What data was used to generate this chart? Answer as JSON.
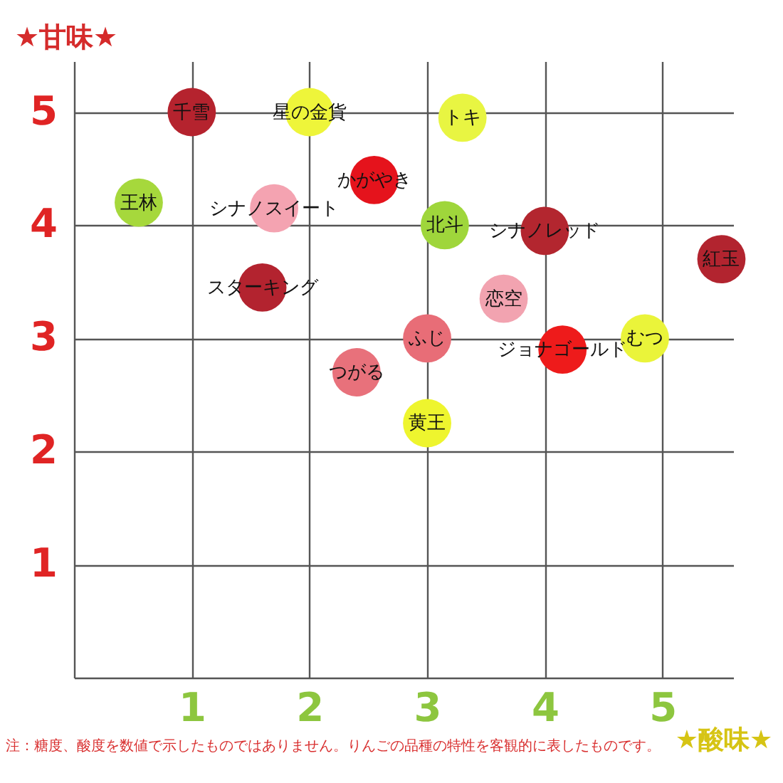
{
  "chart_data": {
    "type": "scatter",
    "xlabel": "★酸味★",
    "ylabel": "★甘味★",
    "xlim": [
      0,
      5.6
    ],
    "ylim": [
      0,
      5.45
    ],
    "xticks": [
      1,
      2,
      3,
      4,
      5
    ],
    "yticks": [
      1,
      2,
      3,
      4,
      5
    ],
    "grid": true,
    "marker": "circle",
    "annotations": [
      "注：糖度、酸度を数値で示したものではありません。りんごの品種の特性を客観的に表したものです。"
    ],
    "series": [
      {
        "name": "千雪",
        "color": "#b5232e",
        "x": [
          1.0
        ],
        "values": [
          5.0
        ]
      },
      {
        "name": "星の金貨",
        "color": "#eef53a",
        "x": [
          2.0
        ],
        "values": [
          5.0
        ]
      },
      {
        "name": "王林",
        "color": "#a6d83c",
        "x": [
          0.55
        ],
        "values": [
          4.2
        ]
      },
      {
        "name": "シナノスイート",
        "color": "#f4a3b1",
        "x": [
          1.7
        ],
        "values": [
          4.15
        ]
      },
      {
        "name": "かがやき",
        "color": "#e5131c",
        "x": [
          2.55
        ],
        "values": [
          4.4
        ]
      },
      {
        "name": "トキ",
        "color": "#e8f542",
        "x": [
          3.3
        ],
        "values": [
          4.95
        ]
      },
      {
        "name": "北斗",
        "color": "#9fd63b",
        "x": [
          3.15
        ],
        "values": [
          4.0
        ]
      },
      {
        "name": "シナノレッド",
        "color": "#b3262f",
        "x": [
          4.0
        ],
        "values": [
          3.95
        ]
      },
      {
        "name": "紅玉",
        "color": "#b2242f",
        "x": [
          5.5
        ],
        "values": [
          3.7
        ]
      },
      {
        "name": "スターキング",
        "color": "#b3232f",
        "x": [
          1.6
        ],
        "values": [
          3.45
        ]
      },
      {
        "name": "恋空",
        "color": "#f2a3b0",
        "x": [
          3.65
        ],
        "values": [
          3.35
        ]
      },
      {
        "name": "ふじ",
        "color": "#e86d77",
        "x": [
          3.0
        ],
        "values": [
          3.0
        ]
      },
      {
        "name": "つがる",
        "color": "#e8717b",
        "x": [
          2.4
        ],
        "values": [
          2.7
        ]
      },
      {
        "name": "ジョナゴールド",
        "color": "#ee1b1b",
        "x": [
          4.15
        ],
        "values": [
          2.9
        ]
      },
      {
        "name": "むつ",
        "color": "#eaf43a",
        "x": [
          4.85
        ],
        "values": [
          3.0
        ]
      },
      {
        "name": "黄王",
        "color": "#eef52e",
        "x": [
          3.0
        ],
        "values": [
          2.25
        ]
      }
    ]
  }
}
